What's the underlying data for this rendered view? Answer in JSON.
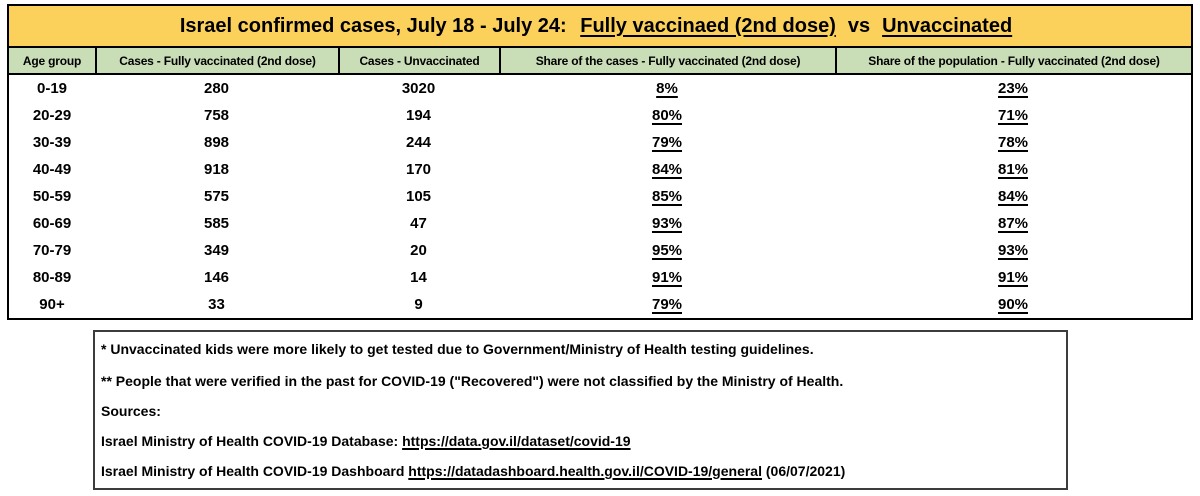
{
  "title": {
    "prefix": "Israel confirmed cases, July 18 - July 24: ",
    "vaccinated_part": "Fully vaccinaed (2nd dose)",
    "vs_label": "vs",
    "unvaccinated_part": "Unvaccinated"
  },
  "chart_data": {
    "type": "table",
    "title": "Israel confirmed cases, July 18 - July 24: Fully vaccinaed (2nd dose) vs Unvaccinated",
    "columns": [
      "Age group",
      "Cases - Fully vaccinated (2nd dose)",
      "Cases - Unvaccinated",
      "Share of the cases - Fully vaccinated (2nd dose)",
      "Share of the population - Fully vaccinated (2nd dose)"
    ],
    "rows": [
      [
        "0-19",
        "280",
        "3020",
        "8%",
        "23%"
      ],
      [
        "20-29",
        "758",
        "194",
        "80%",
        "71%"
      ],
      [
        "30-39",
        "898",
        "244",
        "79%",
        "78%"
      ],
      [
        "40-49",
        "918",
        "170",
        "84%",
        "81%"
      ],
      [
        "50-59",
        "575",
        "105",
        "85%",
        "84%"
      ],
      [
        "60-69",
        "585",
        "47",
        "93%",
        "87%"
      ],
      [
        "70-79",
        "349",
        "20",
        "95%",
        "93%"
      ],
      [
        "80-89",
        "146",
        "14",
        "91%",
        "91%"
      ],
      [
        "90+",
        "33",
        "9",
        "79%",
        "90%"
      ]
    ]
  },
  "notes": {
    "line1": "* Unvaccinated kids were more likely to get tested due to Government/Ministry of Health testing guidelines.",
    "line2": "** People that were verified in the past for COVID-19 (\"Recovered\") were not classified by the Ministry of Health.",
    "sources_label": "Sources:",
    "source1_prefix": "Israel Ministry of Health COVID-19 Database: ",
    "source1_url": "https://data.gov.il/dataset/covid-19",
    "source2_prefix": "Israel Ministry of Health COVID-19 Dashboard ",
    "source2_url": "https://datadashboard.health.gov.il/COVID-19/general",
    "source2_suffix": " (06/07/2021)"
  },
  "colors": {
    "title_bg": "#fbd15c",
    "header_bg": "#c9ddb6",
    "border": "#000000"
  }
}
